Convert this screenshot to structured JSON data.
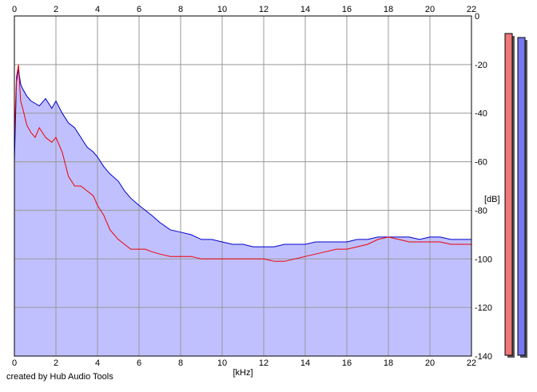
{
  "chart_data": {
    "type": "area",
    "xlabel": "[kHz]",
    "ylabel": "[dB]",
    "xlim": [
      0,
      22
    ],
    "ylim": [
      -140,
      0
    ],
    "x_ticks": [
      "0",
      "2",
      "4",
      "6",
      "8",
      "10",
      "12",
      "14",
      "16",
      "18",
      "20",
      "22"
    ],
    "x_tick_values": [
      0,
      2,
      4,
      6,
      8,
      10,
      12,
      14,
      16,
      18,
      20,
      22
    ],
    "y_ticks": [
      "0",
      "-20",
      "-40",
      "-60",
      "-80",
      "-100",
      "-120",
      "-140"
    ],
    "y_tick_values": [
      0,
      -20,
      -40,
      -60,
      -80,
      -100,
      -120,
      -140
    ],
    "grid": true,
    "background_fill": "#c0c0ff",
    "series": [
      {
        "color": "#0000cc",
        "x": [
          0,
          0.1,
          0.2,
          0.3,
          0.4,
          0.6,
          0.8,
          1.0,
          1.2,
          1.5,
          1.8,
          2.0,
          2.3,
          2.6,
          2.9,
          3.2,
          3.5,
          3.8,
          4.0,
          4.3,
          4.6,
          5.0,
          5.3,
          5.6,
          6.0,
          6.3,
          6.6,
          7.0,
          7.5,
          8.0,
          8.5,
          9.0,
          9.5,
          10.0,
          10.5,
          11.0,
          11.5,
          12.0,
          12.5,
          13.0,
          13.5,
          14.0,
          14.5,
          15.0,
          15.5,
          16.0,
          16.5,
          17.0,
          17.5,
          18.0,
          18.5,
          19.0,
          19.5,
          20.0,
          20.5,
          21.0,
          21.5,
          22.0
        ],
        "y": [
          -60,
          -27,
          -22,
          -28,
          -30,
          -33,
          -35,
          -36,
          -37,
          -34,
          -38,
          -35,
          -40,
          -44,
          -46,
          -50,
          -54,
          -56,
          -58,
          -62,
          -65,
          -68,
          -72,
          -75,
          -78,
          -80,
          -82,
          -85,
          -88,
          -89,
          -90,
          -92,
          -92,
          -93,
          -94,
          -94,
          -95,
          -95,
          -95,
          -94,
          -94,
          -94,
          -93,
          -93,
          -93,
          -93,
          -92,
          -92,
          -91,
          -91,
          -91,
          -91,
          -92,
          -91,
          -91,
          -92,
          -92,
          -92
        ]
      },
      {
        "color": "#ee0000",
        "x": [
          0,
          0.1,
          0.2,
          0.3,
          0.4,
          0.6,
          0.8,
          1.0,
          1.2,
          1.5,
          1.8,
          2.0,
          2.3,
          2.6,
          2.9,
          3.2,
          3.5,
          3.8,
          4.0,
          4.3,
          4.6,
          5.0,
          5.3,
          5.6,
          6.0,
          6.3,
          6.6,
          7.0,
          7.5,
          8.0,
          8.5,
          9.0,
          9.5,
          10.0,
          10.5,
          11.0,
          11.5,
          12.0,
          12.5,
          13.0,
          13.5,
          14.0,
          14.5,
          15.0,
          15.5,
          16.0,
          16.5,
          17.0,
          17.5,
          18.0,
          18.5,
          19.0,
          19.5,
          20.0,
          20.5,
          21.0,
          21.5,
          22.0
        ],
        "y": [
          -50,
          -25,
          -20,
          -35,
          -38,
          -45,
          -48,
          -50,
          -46,
          -50,
          -52,
          -50,
          -56,
          -66,
          -70,
          -70,
          -72,
          -74,
          -78,
          -82,
          -88,
          -92,
          -94,
          -96,
          -96,
          -96,
          -97,
          -98,
          -99,
          -99,
          -99,
          -100,
          -100,
          -100,
          -100,
          -100,
          -100,
          -100,
          -101,
          -101,
          -100,
          -99,
          -98,
          -97,
          -96,
          -96,
          -95,
          -94,
          -92,
          -91,
          -92,
          -93,
          -93,
          -93,
          -93,
          -94,
          -94,
          -94
        ]
      }
    ]
  },
  "meters": {
    "left_color": "#ee7777",
    "right_color": "#7777ee"
  },
  "credit": "created by Hub Audio Tools"
}
